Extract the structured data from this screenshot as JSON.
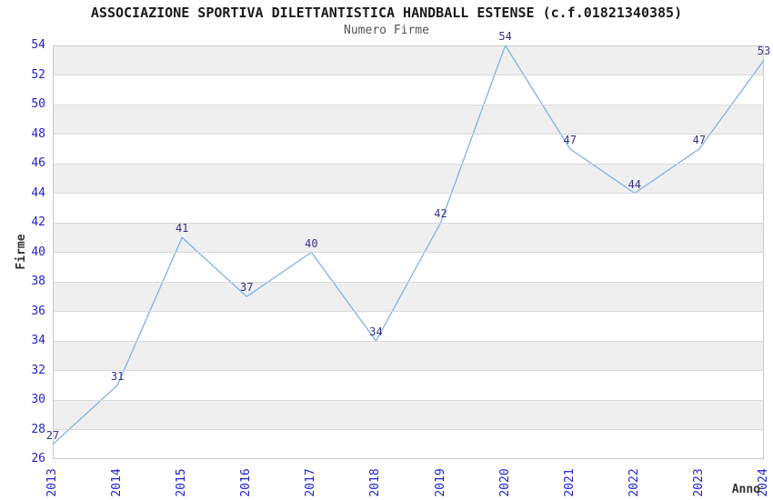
{
  "chart_data": {
    "type": "line",
    "title": "ASSOCIAZIONE SPORTIVA DILETTANTISTICA HANDBALL ESTENSE (c.f.01821340385)",
    "subtitle": "Numero Firme",
    "xlabel": "Anno",
    "ylabel": "Firme",
    "categories": [
      "2013",
      "2014",
      "2015",
      "2016",
      "2017",
      "2018",
      "2019",
      "2020",
      "2021",
      "2022",
      "2023",
      "2024"
    ],
    "values": [
      27,
      31,
      41,
      37,
      40,
      34,
      42,
      54,
      47,
      44,
      47,
      53
    ],
    "ylim": [
      26,
      54
    ],
    "ytick_step": 2,
    "grid": true,
    "legend": "none",
    "style": {
      "line_color": "#7fb2e8",
      "point_label_color": "#333388",
      "tick_label_color": "#2222cc",
      "title_color": "#1a1a1a",
      "subtitle_color": "#555555",
      "axis_title_color": "#333333",
      "stripe_color": "#efefef",
      "grid_color": "#d9d9d9",
      "border_color": "#c8c8c8",
      "background": "#ffffff"
    }
  }
}
